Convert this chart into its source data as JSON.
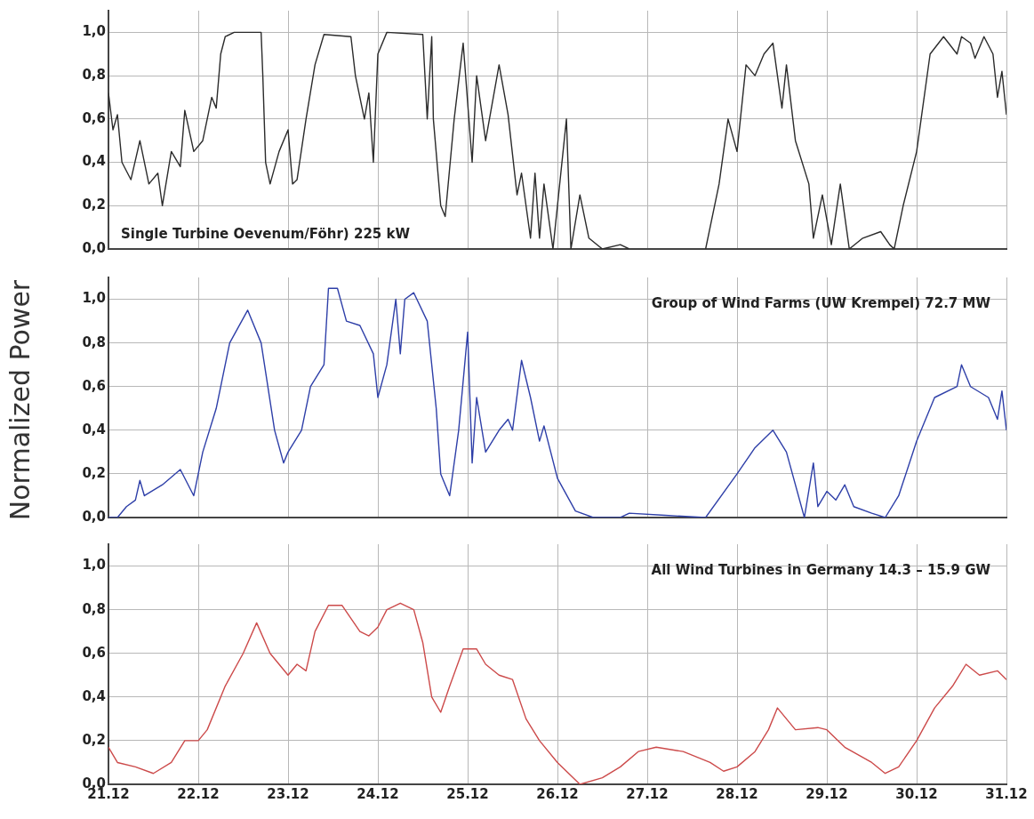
{
  "chart_data": [
    {
      "type": "line",
      "annotations": [
        "Single Turbine Oevenum/Föhr) 225 kW"
      ],
      "xlim": [
        "--12-21",
        "--12-31"
      ],
      "xticks": [
        {
          "value": "--12-21",
          "label": null
        },
        {
          "value": "--12-22",
          "label": null
        },
        {
          "value": "--12-23",
          "label": null
        },
        {
          "value": "--12-24",
          "label": null
        },
        {
          "value": "--12-25",
          "label": null
        },
        {
          "value": "--12-26",
          "label": null
        },
        {
          "value": "--12-27",
          "label": null
        },
        {
          "value": "--12-28",
          "label": null
        },
        {
          "value": "--12-29",
          "label": null
        },
        {
          "value": "--12-30",
          "label": null
        },
        {
          "value": "--12-31",
          "label": null
        }
      ],
      "ylim": [
        0,
        1.1
      ],
      "yticks": [
        {
          "value": 0,
          "label": "0,0"
        },
        {
          "value": 0.2,
          "label": "0,2"
        },
        {
          "value": 0.4,
          "label": "0,4"
        },
        {
          "value": 0.6,
          "label": "0,6"
        },
        {
          "value": 0.8,
          "label": "0,8"
        },
        {
          "value": 1,
          "label": "1,0"
        }
      ],
      "grid": true,
      "tick_labels": "y",
      "series": [
        {
          "color": "#2b2b2b",
          "x": [
            "--12-21T00:00",
            "--12-21T01:12",
            "--12-21T02:24",
            "--12-21T03:36",
            "--12-21T06:00",
            "--12-21T08:24",
            "--12-21T10:48",
            "--12-21T13:12",
            "--12-21T14:24",
            "--12-21T16:48",
            "--12-21T19:12",
            "--12-21T20:24",
            "--12-21T22:48",
            "--12-22T01:12",
            "--12-22T03:36",
            "--12-22T04:48",
            "--12-22T06:00",
            "--12-22T07:12",
            "--12-22T09:36",
            "--12-22T16:48",
            "--12-22T17:15",
            "--12-22T18:00",
            "--12-22T19:12",
            "--12-22T21:36",
            "--12-23T00:00",
            "--12-23T01:12",
            "--12-23T02:24",
            "--12-23T04:48",
            "--12-23T07:12",
            "--12-23T09:36",
            "--12-23T16:48",
            "--12-23T18:00",
            "--12-23T20:24",
            "--12-23T21:36",
            "--12-23T22:48",
            "--12-24T00:00",
            "--12-24T02:24",
            "--12-24T12:00",
            "--12-24T13:12",
            "--12-24T14:24",
            "--12-24T14:50",
            "--12-24T16:48",
            "--12-24T18:00",
            "--12-24T20:24",
            "--12-24T22:48",
            "--12-25T01:12",
            "--12-25T02:24",
            "--12-25T04:48",
            "--12-25T08:24",
            "--12-25T10:48",
            "--12-25T13:12",
            "--12-25T14:24",
            "--12-25T16:48",
            "--12-25T18:00",
            "--12-25T19:12",
            "--12-25T20:24",
            "--12-25T22:48",
            "--12-26T02:24",
            "--12-26T03:36",
            "--12-26T06:00",
            "--12-26T08:24",
            "--12-26T12:00",
            "--12-26T16:48",
            "--12-26T19:12",
            "--12-27T04:48",
            "--12-27T15:36",
            "--12-27T19:12",
            "--12-27T21:36",
            "--12-28T00:00",
            "--12-28T02:24",
            "--12-28T04:48",
            "--12-28T07:12",
            "--12-28T09:36",
            "--12-28T12:00",
            "--12-28T13:12",
            "--12-28T15:36",
            "--12-28T19:12",
            "--12-28T20:24",
            "--12-28T22:48",
            "--12-29T01:12",
            "--12-29T03:36",
            "--12-29T06:00",
            "--12-29T09:36",
            "--12-29T14:24",
            "--12-29T16:48",
            "--12-29T18:00",
            "--12-29T20:24",
            "--12-30T00:00",
            "--12-30T01:12",
            "--12-30T03:36",
            "--12-30T07:12",
            "--12-30T10:48",
            "--12-30T12:00",
            "--12-30T14:24",
            "--12-30T15:36",
            "--12-30T18:00",
            "--12-30T20:24",
            "--12-30T21:36",
            "--12-30T22:48",
            "--12-31T00:00"
          ],
          "values": [
            0.72,
            0.55,
            0.62,
            0.4,
            0.32,
            0.5,
            0.3,
            0.35,
            0.2,
            0.45,
            0.38,
            0.64,
            0.45,
            0.5,
            0.7,
            0.65,
            0.9,
            0.98,
            1.0,
            1.0,
            0.8,
            0.4,
            0.3,
            0.45,
            0.55,
            0.3,
            0.32,
            0.6,
            0.85,
            0.99,
            0.98,
            0.8,
            0.6,
            0.72,
            0.4,
            0.9,
            1.0,
            0.99,
            0.6,
            0.98,
            0.6,
            0.2,
            0.15,
            0.6,
            0.95,
            0.4,
            0.8,
            0.5,
            0.85,
            0.62,
            0.25,
            0.35,
            0.05,
            0.35,
            0.05,
            0.3,
            0.0,
            0.6,
            0.0,
            0.25,
            0.05,
            0.0,
            0.02,
            0.0,
            null,
            0.0,
            0.3,
            0.6,
            0.45,
            0.85,
            0.8,
            0.9,
            0.95,
            0.65,
            0.85,
            0.5,
            0.3,
            0.05,
            0.25,
            0.02,
            0.3,
            0.0,
            0.05,
            0.08,
            0.02,
            0.0,
            0.2,
            0.45,
            0.6,
            0.9,
            0.98,
            0.9,
            0.98,
            0.95,
            0.88,
            0.98,
            0.9,
            0.7,
            0.82,
            0.62
          ]
        }
      ]
    },
    {
      "type": "line",
      "ylabel": "Normalized Power",
      "annotations": [
        "Group of Wind Farms (UW Krempel) 72.7 MW"
      ],
      "xlim": [
        "--12-21",
        "--12-31"
      ],
      "xticks": [
        {
          "value": "--12-21",
          "label": null
        },
        {
          "value": "--12-22",
          "label": null
        },
        {
          "value": "--12-23",
          "label": null
        },
        {
          "value": "--12-24",
          "label": null
        },
        {
          "value": "--12-25",
          "label": null
        },
        {
          "value": "--12-26",
          "label": null
        },
        {
          "value": "--12-27",
          "label": null
        },
        {
          "value": "--12-28",
          "label": null
        },
        {
          "value": "--12-29",
          "label": null
        },
        {
          "value": "--12-30",
          "label": null
        },
        {
          "value": "--12-31",
          "label": null
        }
      ],
      "ylim": [
        0,
        1.1
      ],
      "yticks": [
        {
          "value": 0,
          "label": "0,0"
        },
        {
          "value": 0.2,
          "label": "0,2"
        },
        {
          "value": 0.4,
          "label": "0,4"
        },
        {
          "value": 0.6,
          "label": "0,6"
        },
        {
          "value": 0.8,
          "label": "0,8"
        },
        {
          "value": 1,
          "label": "1,0"
        }
      ],
      "grid": true,
      "tick_labels": "y",
      "series": [
        {
          "color": "#2e3fa8",
          "x": [
            "--12-21T00:00",
            "--12-21T02:24",
            "--12-21T04:48",
            "--12-21T07:12",
            "--12-21T08:24",
            "--12-21T09:36",
            "--12-21T14:24",
            "--12-21T19:12",
            "--12-21T22:48",
            "--12-22T01:12",
            "--12-22T04:48",
            "--12-22T08:24",
            "--12-22T13:12",
            "--12-22T16:48",
            "--12-22T20:24",
            "--12-22T22:48",
            "--12-23T00:00",
            "--12-23T03:36",
            "--12-23T06:00",
            "--12-23T09:36",
            "--12-23T10:48",
            "--12-23T13:12",
            "--12-23T15:36",
            "--12-23T19:12",
            "--12-23T22:48",
            "--12-24T00:00",
            "--12-24T02:24",
            "--12-24T04:48",
            "--12-24T06:00",
            "--12-24T07:12",
            "--12-24T09:36",
            "--12-24T13:12",
            "--12-24T15:36",
            "--12-24T16:48",
            "--12-24T19:12",
            "--12-24T21:36",
            "--12-25T00:00",
            "--12-25T01:12",
            "--12-25T02:24",
            "--12-25T04:48",
            "--12-25T08:24",
            "--12-25T10:48",
            "--12-25T12:00",
            "--12-25T14:24",
            "--12-25T16:48",
            "--12-25T19:12",
            "--12-25T20:24",
            "--12-26T00:00",
            "--12-26T04:48",
            "--12-26T09:36",
            "--12-26T16:48",
            "--12-26T19:12",
            "--12-27T04:48",
            "--12-27T15:36",
            "--12-28T00:00",
            "--12-28T04:48",
            "--12-28T09:36",
            "--12-28T13:12",
            "--12-28T18:00",
            "--12-28T20:24",
            "--12-28T21:36",
            "--12-29T00:00",
            "--12-29T02:24",
            "--12-29T04:48",
            "--12-29T07:12",
            "--12-29T12:00",
            "--12-29T15:36",
            "--12-29T19:12",
            "--12-30T00:00",
            "--12-30T04:48",
            "--12-30T10:48",
            "--12-30T12:00",
            "--12-30T14:24",
            "--12-30T19:12",
            "--12-30T21:36",
            "--12-30T22:48",
            "--12-31T00:00"
          ],
          "values": [
            0.0,
            0.0,
            0.05,
            0.08,
            0.17,
            0.1,
            0.15,
            0.22,
            0.1,
            0.3,
            0.5,
            0.8,
            0.95,
            0.8,
            0.4,
            0.25,
            0.3,
            0.4,
            0.6,
            0.7,
            1.05,
            1.05,
            0.9,
            0.88,
            0.75,
            0.55,
            0.7,
            1.0,
            0.75,
            1.0,
            1.03,
            0.9,
            0.5,
            0.2,
            0.1,
            0.4,
            0.85,
            0.25,
            0.55,
            0.3,
            0.4,
            0.45,
            0.4,
            0.72,
            0.55,
            0.35,
            0.42,
            0.18,
            0.03,
            0.0,
            0.0,
            0.02,
            0.01,
            0.0,
            0.2,
            0.32,
            0.4,
            0.3,
            0.0,
            0.25,
            0.05,
            0.12,
            0.08,
            0.15,
            0.05,
            0.02,
            0.0,
            0.1,
            0.35,
            0.55,
            0.6,
            0.7,
            0.6,
            0.55,
            0.45,
            0.58,
            0.4
          ]
        }
      ]
    },
    {
      "type": "line",
      "annotations": [
        "All Wind Turbines in Germany 14.3 – 15.9 GW"
      ],
      "xlim": [
        "--12-21",
        "--12-31"
      ],
      "xticks": [
        {
          "value": "--12-21",
          "label": "21.12"
        },
        {
          "value": "--12-22",
          "label": "22.12"
        },
        {
          "value": "--12-23",
          "label": "23.12"
        },
        {
          "value": "--12-24",
          "label": "24.12"
        },
        {
          "value": "--12-25",
          "label": "25.12"
        },
        {
          "value": "--12-26",
          "label": "26.12"
        },
        {
          "value": "--12-27",
          "label": "27.12"
        },
        {
          "value": "--12-28",
          "label": "28.12"
        },
        {
          "value": "--12-29",
          "label": "29.12"
        },
        {
          "value": "--12-30",
          "label": "30.12"
        },
        {
          "value": "--12-31",
          "label": "31.12"
        }
      ],
      "ylim": [
        0,
        1.1
      ],
      "yticks": [
        {
          "value": 0,
          "label": "0,0"
        },
        {
          "value": 0.2,
          "label": "0,2"
        },
        {
          "value": 0.4,
          "label": "0,4"
        },
        {
          "value": 0.6,
          "label": "0,6"
        },
        {
          "value": 0.8,
          "label": "0,8"
        },
        {
          "value": 1,
          "label": "1,0"
        }
      ],
      "grid": true,
      "series": [
        {
          "color": "#cc4a4a",
          "x": [
            "--12-21T00:00",
            "--12-21T02:24",
            "--12-21T07:12",
            "--12-21T12:00",
            "--12-21T16:48",
            "--12-21T20:24",
            "--12-22T00:00",
            "--12-22T02:24",
            "--12-22T07:12",
            "--12-22T12:00",
            "--12-22T15:36",
            "--12-22T19:12",
            "--12-23T00:00",
            "--12-23T02:24",
            "--12-23T04:48",
            "--12-23T07:12",
            "--12-23T10:48",
            "--12-23T14:24",
            "--12-23T19:12",
            "--12-23T21:36",
            "--12-24T00:00",
            "--12-24T02:24",
            "--12-24T06:00",
            "--12-24T09:36",
            "--12-24T12:00",
            "--12-24T14:24",
            "--12-24T16:48",
            "--12-24T19:12",
            "--12-24T22:48",
            "--12-25T02:24",
            "--12-25T04:48",
            "--12-25T08:24",
            "--12-25T12:00",
            "--12-25T15:36",
            "--12-25T19:12",
            "--12-26T00:00",
            "--12-26T06:00",
            "--12-26T12:00",
            "--12-26T16:48",
            "--12-26T21:36",
            "--12-27T02:24",
            "--12-27T09:36",
            "--12-27T16:48",
            "--12-27T20:24",
            "--12-28T00:00",
            "--12-28T04:48",
            "--12-28T08:24",
            "--12-28T10:48",
            "--12-28T13:12",
            "--12-28T15:36",
            "--12-28T21:36",
            "--12-29T00:00",
            "--12-29T04:48",
            "--12-29T12:00",
            "--12-29T15:36",
            "--12-29T19:12",
            "--12-30T00:00",
            "--12-30T04:48",
            "--12-30T09:36",
            "--12-30T13:12",
            "--12-30T16:48",
            "--12-30T21:36",
            "--12-31T00:00"
          ],
          "values": [
            0.17,
            0.1,
            0.08,
            0.05,
            0.1,
            0.2,
            0.2,
            0.25,
            0.45,
            0.6,
            0.74,
            0.6,
            0.5,
            0.55,
            0.52,
            0.7,
            0.82,
            0.82,
            0.7,
            0.68,
            0.72,
            0.8,
            0.83,
            0.8,
            0.65,
            0.4,
            0.33,
            0.45,
            0.62,
            0.62,
            0.55,
            0.5,
            0.48,
            0.3,
            0.2,
            0.1,
            0.0,
            0.03,
            0.08,
            0.15,
            0.17,
            0.15,
            0.1,
            0.06,
            0.08,
            0.15,
            0.25,
            0.35,
            0.3,
            0.25,
            0.26,
            0.25,
            0.17,
            0.1,
            0.05,
            0.08,
            0.2,
            0.35,
            0.45,
            0.55,
            0.5,
            0.52,
            0.48
          ]
        }
      ]
    }
  ]
}
